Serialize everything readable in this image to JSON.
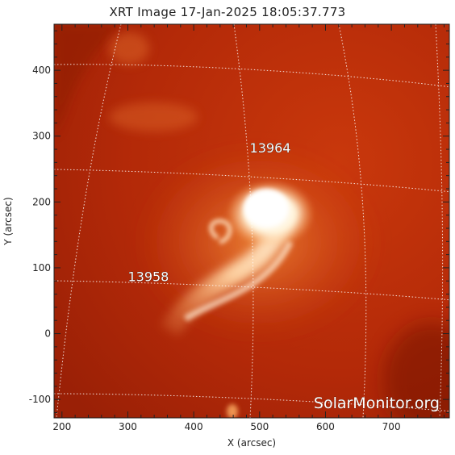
{
  "title": "XRT Image 17-Jan-2025 18:05:37.773",
  "axes": {
    "xlabel": "X (arcsec)",
    "ylabel": "Y (arcsec)",
    "xlim": [
      188,
      788
    ],
    "ylim": [
      -128,
      470
    ],
    "xticks": [
      200,
      300,
      400,
      500,
      600,
      700
    ],
    "yticks": [
      -100,
      0,
      100,
      200,
      300,
      400
    ]
  },
  "regions": [
    {
      "label": "13964",
      "x": 485,
      "y": 275
    },
    {
      "label": "13958",
      "x": 300,
      "y": 80
    }
  ],
  "watermark": "SolarMonitor.org",
  "colors": {
    "background_disk": "#b82a08",
    "bright_core": "#ffffff",
    "grid": "#ffffff"
  }
}
